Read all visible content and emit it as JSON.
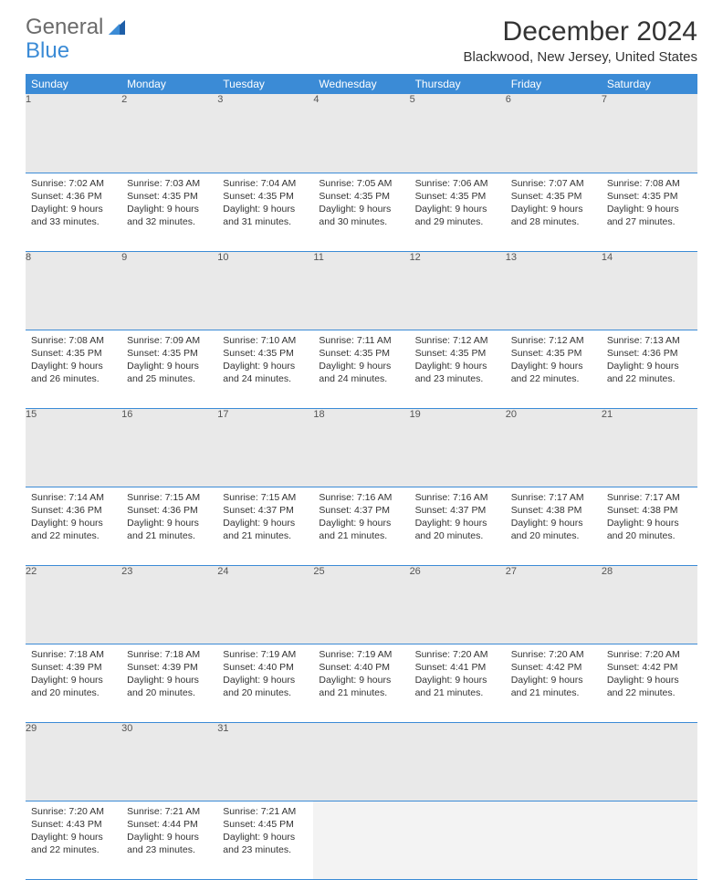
{
  "logo": {
    "text1": "General",
    "text2": "Blue"
  },
  "title": "December 2024",
  "location": "Blackwood, New Jersey, United States",
  "colors": {
    "header_bg": "#3b8bd6",
    "header_text": "#ffffff",
    "daynum_bg": "#e9e9e9",
    "border": "#3b8bd6",
    "empty_bg": "#f3f3f3"
  },
  "weekdays": [
    "Sunday",
    "Monday",
    "Tuesday",
    "Wednesday",
    "Thursday",
    "Friday",
    "Saturday"
  ],
  "weeks": [
    [
      {
        "n": "1",
        "sr": "7:02 AM",
        "ss": "4:36 PM",
        "dl": "9 hours and 33 minutes."
      },
      {
        "n": "2",
        "sr": "7:03 AM",
        "ss": "4:35 PM",
        "dl": "9 hours and 32 minutes."
      },
      {
        "n": "3",
        "sr": "7:04 AM",
        "ss": "4:35 PM",
        "dl": "9 hours and 31 minutes."
      },
      {
        "n": "4",
        "sr": "7:05 AM",
        "ss": "4:35 PM",
        "dl": "9 hours and 30 minutes."
      },
      {
        "n": "5",
        "sr": "7:06 AM",
        "ss": "4:35 PM",
        "dl": "9 hours and 29 minutes."
      },
      {
        "n": "6",
        "sr": "7:07 AM",
        "ss": "4:35 PM",
        "dl": "9 hours and 28 minutes."
      },
      {
        "n": "7",
        "sr": "7:08 AM",
        "ss": "4:35 PM",
        "dl": "9 hours and 27 minutes."
      }
    ],
    [
      {
        "n": "8",
        "sr": "7:08 AM",
        "ss": "4:35 PM",
        "dl": "9 hours and 26 minutes."
      },
      {
        "n": "9",
        "sr": "7:09 AM",
        "ss": "4:35 PM",
        "dl": "9 hours and 25 minutes."
      },
      {
        "n": "10",
        "sr": "7:10 AM",
        "ss": "4:35 PM",
        "dl": "9 hours and 24 minutes."
      },
      {
        "n": "11",
        "sr": "7:11 AM",
        "ss": "4:35 PM",
        "dl": "9 hours and 24 minutes."
      },
      {
        "n": "12",
        "sr": "7:12 AM",
        "ss": "4:35 PM",
        "dl": "9 hours and 23 minutes."
      },
      {
        "n": "13",
        "sr": "7:12 AM",
        "ss": "4:35 PM",
        "dl": "9 hours and 22 minutes."
      },
      {
        "n": "14",
        "sr": "7:13 AM",
        "ss": "4:36 PM",
        "dl": "9 hours and 22 minutes."
      }
    ],
    [
      {
        "n": "15",
        "sr": "7:14 AM",
        "ss": "4:36 PM",
        "dl": "9 hours and 22 minutes."
      },
      {
        "n": "16",
        "sr": "7:15 AM",
        "ss": "4:36 PM",
        "dl": "9 hours and 21 minutes."
      },
      {
        "n": "17",
        "sr": "7:15 AM",
        "ss": "4:37 PM",
        "dl": "9 hours and 21 minutes."
      },
      {
        "n": "18",
        "sr": "7:16 AM",
        "ss": "4:37 PM",
        "dl": "9 hours and 21 minutes."
      },
      {
        "n": "19",
        "sr": "7:16 AM",
        "ss": "4:37 PM",
        "dl": "9 hours and 20 minutes."
      },
      {
        "n": "20",
        "sr": "7:17 AM",
        "ss": "4:38 PM",
        "dl": "9 hours and 20 minutes."
      },
      {
        "n": "21",
        "sr": "7:17 AM",
        "ss": "4:38 PM",
        "dl": "9 hours and 20 minutes."
      }
    ],
    [
      {
        "n": "22",
        "sr": "7:18 AM",
        "ss": "4:39 PM",
        "dl": "9 hours and 20 minutes."
      },
      {
        "n": "23",
        "sr": "7:18 AM",
        "ss": "4:39 PM",
        "dl": "9 hours and 20 minutes."
      },
      {
        "n": "24",
        "sr": "7:19 AM",
        "ss": "4:40 PM",
        "dl": "9 hours and 20 minutes."
      },
      {
        "n": "25",
        "sr": "7:19 AM",
        "ss": "4:40 PM",
        "dl": "9 hours and 21 minutes."
      },
      {
        "n": "26",
        "sr": "7:20 AM",
        "ss": "4:41 PM",
        "dl": "9 hours and 21 minutes."
      },
      {
        "n": "27",
        "sr": "7:20 AM",
        "ss": "4:42 PM",
        "dl": "9 hours and 21 minutes."
      },
      {
        "n": "28",
        "sr": "7:20 AM",
        "ss": "4:42 PM",
        "dl": "9 hours and 22 minutes."
      }
    ],
    [
      {
        "n": "29",
        "sr": "7:20 AM",
        "ss": "4:43 PM",
        "dl": "9 hours and 22 minutes."
      },
      {
        "n": "30",
        "sr": "7:21 AM",
        "ss": "4:44 PM",
        "dl": "9 hours and 23 minutes."
      },
      {
        "n": "31",
        "sr": "7:21 AM",
        "ss": "4:45 PM",
        "dl": "9 hours and 23 minutes."
      },
      {
        "empty": true
      },
      {
        "empty": true
      },
      {
        "empty": true
      },
      {
        "empty": true
      }
    ]
  ],
  "labels": {
    "sunrise": "Sunrise:",
    "sunset": "Sunset:",
    "daylight": "Daylight:"
  }
}
